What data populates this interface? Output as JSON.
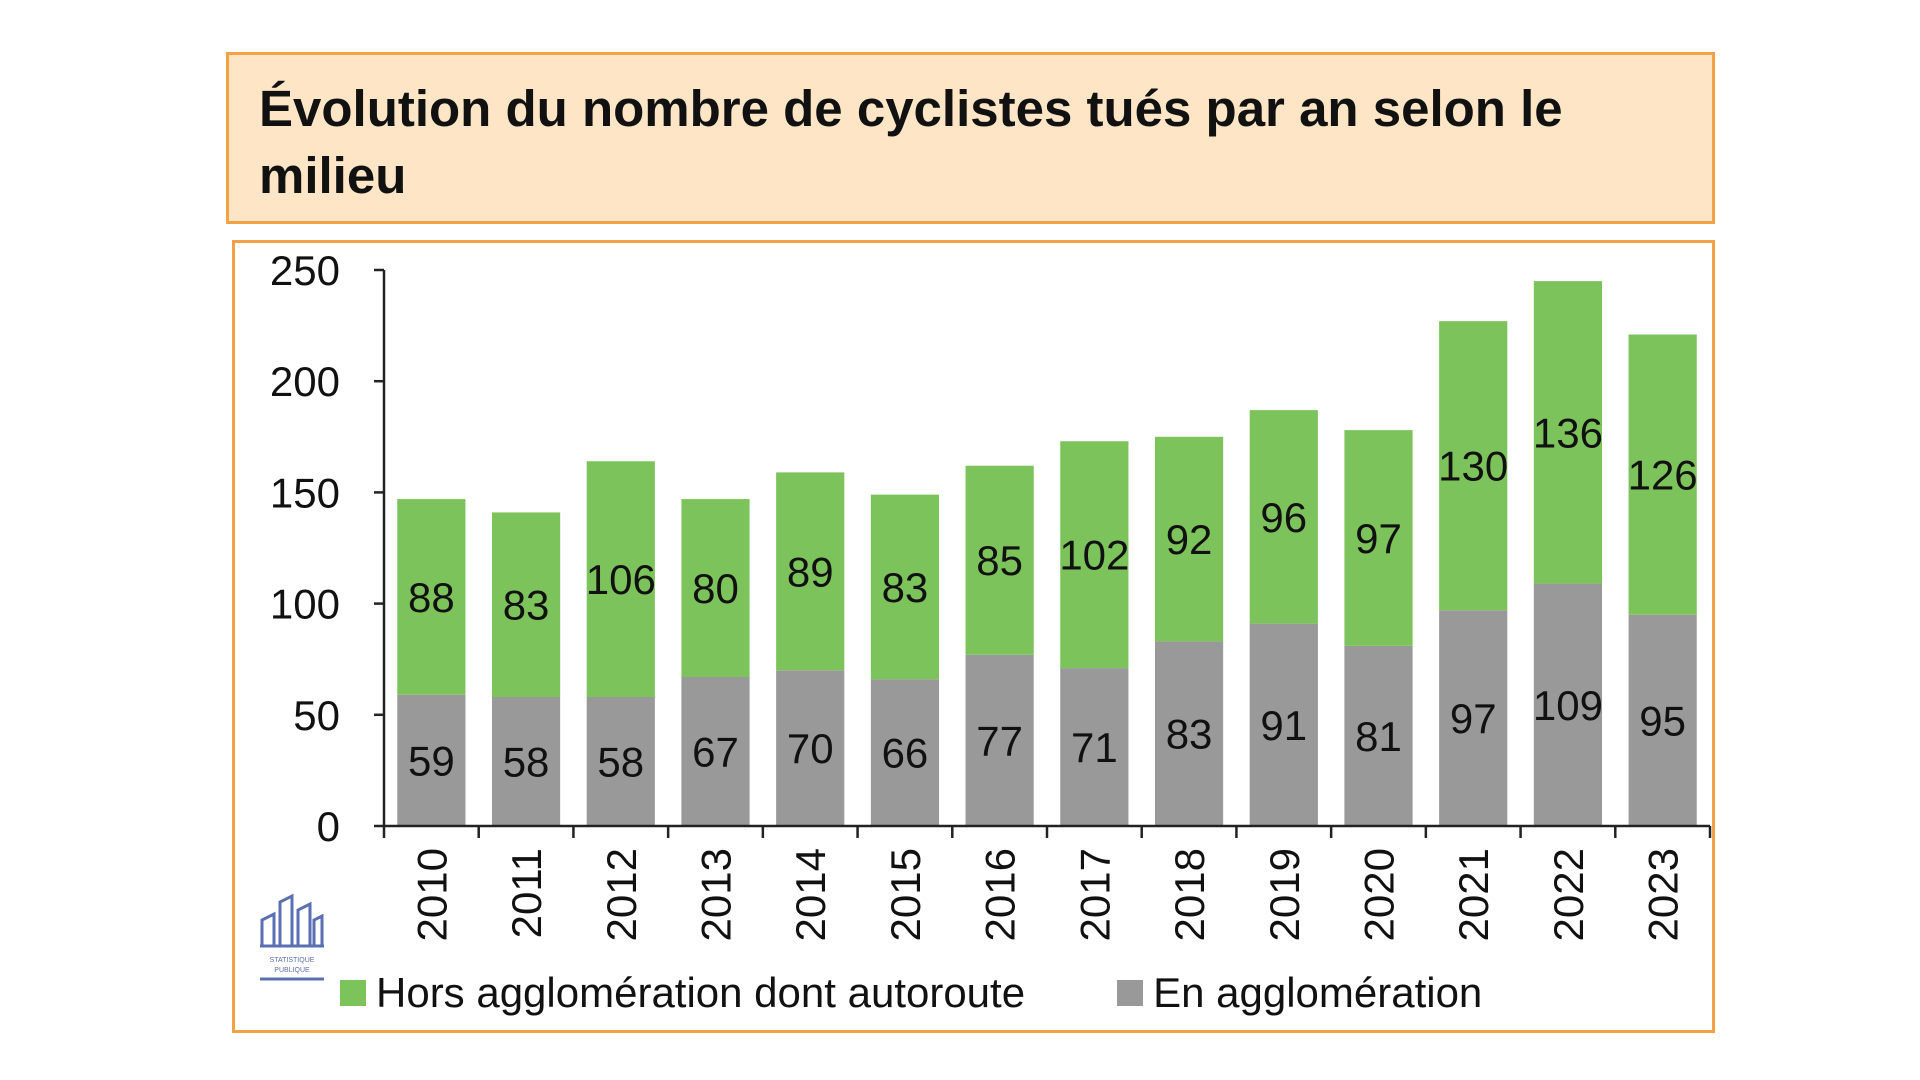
{
  "chart_data": {
    "type": "bar",
    "stacked": true,
    "title": "Évolution du nombre de cyclistes tués par an selon le milieu",
    "categories": [
      "2010",
      "2011",
      "2012",
      "2013",
      "2014",
      "2015",
      "2016",
      "2017",
      "2018",
      "2019",
      "2020",
      "2021",
      "2022",
      "2023"
    ],
    "series": [
      {
        "name": "En agglomération",
        "color": "#999999",
        "values": [
          59,
          58,
          58,
          67,
          70,
          66,
          77,
          71,
          83,
          91,
          81,
          97,
          109,
          95
        ]
      },
      {
        "name": "Hors agglomération dont autoroute",
        "color": "#7dc35b",
        "values": [
          88,
          83,
          106,
          80,
          89,
          83,
          85,
          102,
          92,
          96,
          97,
          130,
          136,
          126
        ]
      }
    ],
    "ylim": [
      0,
      250
    ],
    "yticks": [
      0,
      50,
      100,
      150,
      200,
      250
    ],
    "xlabel": "",
    "ylabel": "",
    "grid": false,
    "legend_position": "bottom",
    "legend": [
      {
        "label": "Hors agglomération dont autoroute",
        "color": "#7dc35b"
      },
      {
        "label": "En agglomération",
        "color": "#999999"
      }
    ]
  }
}
